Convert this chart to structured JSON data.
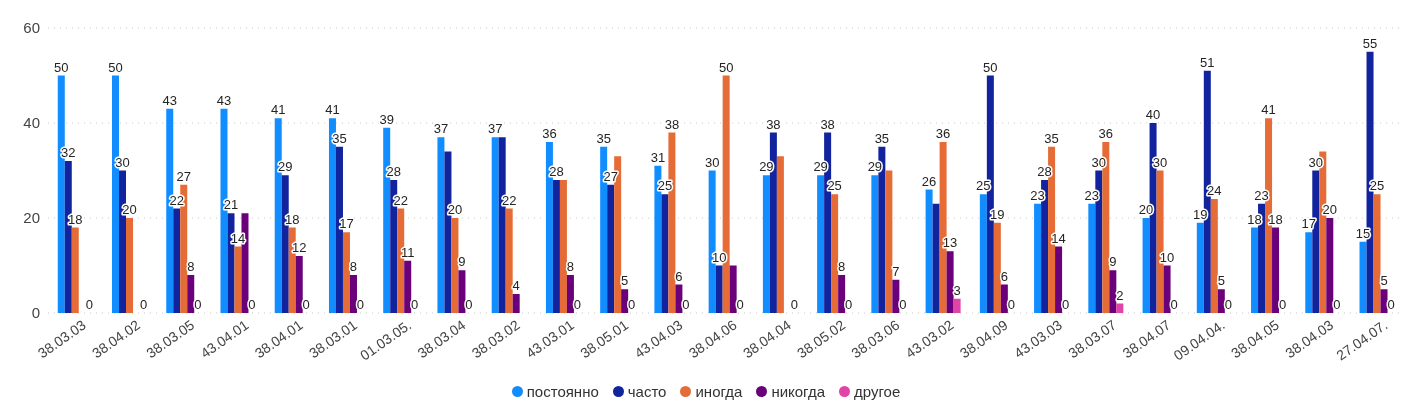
{
  "chart_data": {
    "type": "bar",
    "categories": [
      "38.03.03",
      "38.04.02",
      "38.03.05",
      "43.04.01",
      "38.04.01",
      "38.03.01",
      "01.03.05.",
      "38.03.04",
      "38.03.02",
      "43.03.01",
      "38.05.01",
      "43.04.03",
      "38.04.06",
      "38.04.04",
      "38.05.02",
      "38.03.06",
      "43.03.02",
      "38.04.09",
      "43.03.03",
      "38.03.07",
      "38.04.07",
      "09.04.04.",
      "38.04.05",
      "38.04.03",
      "27.04.07."
    ],
    "series": [
      {
        "name": "постоянно",
        "color": "#118dff",
        "values": [
          50,
          50,
          43,
          43,
          41,
          41,
          39,
          37,
          37,
          36,
          35,
          31,
          30,
          29,
          29,
          29,
          26,
          25,
          23,
          23,
          20,
          19,
          18,
          17,
          15
        ],
        "value_labels": [
          "50",
          "50",
          "43",
          "43",
          "41",
          "41",
          "39",
          "37",
          "37",
          "36",
          "35",
          "31",
          "30",
          "29",
          "29",
          "29",
          "26",
          "25",
          "23",
          "23",
          "20",
          "19",
          "18",
          "17",
          "15"
        ]
      },
      {
        "name": "часто",
        "color": "#12239e",
        "values": [
          32,
          30,
          22,
          21,
          29,
          35,
          28,
          34,
          37,
          28,
          27,
          25,
          10,
          38,
          38,
          35,
          23,
          50,
          28,
          30,
          40,
          51,
          23,
          30,
          55
        ],
        "value_labels": [
          "32",
          "30",
          "22",
          "21",
          "29",
          "35",
          "28",
          null,
          null,
          "28",
          "27",
          "25",
          "10",
          "38",
          "38",
          "35",
          null,
          "50",
          "28",
          "30",
          "40",
          "51",
          "23",
          "30",
          "55"
        ]
      },
      {
        "name": "иногда",
        "color": "#e66c37",
        "values": [
          18,
          20,
          27,
          14,
          18,
          17,
          22,
          20,
          22,
          28,
          33,
          38,
          50,
          33,
          25,
          30,
          36,
          19,
          35,
          36,
          30,
          24,
          41,
          34,
          25
        ],
        "value_labels": [
          "18",
          "20",
          "27",
          "14",
          "18",
          "17",
          "22",
          "20",
          "22",
          null,
          null,
          "38",
          "50",
          null,
          "25",
          null,
          "36",
          "19",
          "35",
          "36",
          "30",
          "24",
          "41",
          null,
          "25"
        ]
      },
      {
        "name": "никогда",
        "color": "#6b007b",
        "values": [
          0,
          0,
          8,
          21,
          12,
          8,
          11,
          9,
          4,
          8,
          5,
          6,
          10,
          0,
          8,
          7,
          13,
          6,
          14,
          9,
          10,
          5,
          18,
          20,
          5
        ],
        "value_labels": [
          null,
          null,
          "8",
          null,
          "12",
          "8",
          "11",
          "9",
          "4",
          "8",
          "5",
          "6",
          null,
          null,
          "8",
          "7",
          "13",
          "6",
          "14",
          "9",
          "10",
          "5",
          "18",
          "20",
          "5"
        ]
      },
      {
        "name": "другое",
        "color": "#e044a7",
        "values": [
          0,
          0,
          0,
          0,
          0,
          0,
          0,
          0,
          0,
          0,
          0,
          0,
          0,
          0,
          0,
          0,
          3,
          0,
          0,
          2,
          0,
          0,
          0,
          0,
          0
        ],
        "value_labels": [
          "0",
          "0",
          "0",
          "0",
          "0",
          "0",
          "0",
          "0",
          null,
          "0",
          "0",
          "0",
          "0",
          "0",
          "0",
          "0",
          "3",
          "0",
          "0",
          "2",
          "0",
          "0",
          "0",
          "0",
          "0"
        ]
      }
    ],
    "ylim": [
      0,
      60
    ],
    "yticks": [
      0,
      20,
      40,
      60
    ],
    "grid": "y",
    "legend": "bottom"
  }
}
